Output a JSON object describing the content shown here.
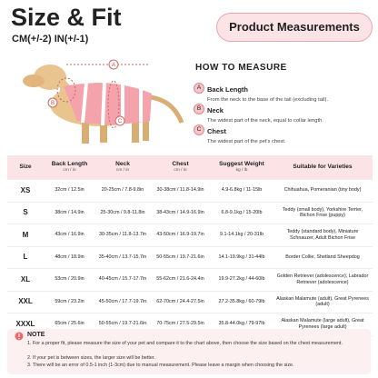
{
  "header": {
    "title": "Size & Fit",
    "subtitle": "CM(+/-2) IN(+/-1)",
    "badge": "Product Measurements"
  },
  "how_to": {
    "title": "HOW TO MEASURE",
    "items": [
      {
        "key": "A",
        "name": "Back Length",
        "desc": "From the neck to the base of the tail (excluding tail)."
      },
      {
        "key": "B",
        "name": "Neck",
        "desc": "The widest part of the neck, equal to collar length."
      },
      {
        "key": "C",
        "name": "Chest",
        "desc": "The widest part of the pet's chest."
      }
    ]
  },
  "table": {
    "headers": [
      {
        "name": "Size"
      },
      {
        "name": "Back Length",
        "unit": "cm / in"
      },
      {
        "name": "Neck",
        "unit": "cm / in"
      },
      {
        "name": "Chest",
        "unit": "cm / in"
      },
      {
        "name": "Suggest Weight",
        "unit": "kg / lb"
      },
      {
        "name": "Suitable for Varieties"
      }
    ],
    "rows": [
      [
        "XS",
        "32cm / 12.5in",
        "20-25cm / 7.8-9.8in",
        "30-38cm / 11.8-14.9in",
        "4.9-6.8kg / 11-15lb",
        "Chihuahua, Pomeranian (tiny body)"
      ],
      [
        "S",
        "38cm / 14.9in",
        "25-30cm / 9.8-11.8in",
        "38-43cm / 14.9-16.9in",
        "6.8-9.1kg / 15-20lb",
        "Teddy (small body), Yorkshire Terrier, Bichon Frise (puppy)"
      ],
      [
        "M",
        "43cm / 16.9in",
        "30-35cm / 11.8-13.7in",
        "43-50cm / 16.9-19.7in",
        "9.1-14.1kg / 20-31lb",
        "Teddy (standard body), Miniature Schnauzer, Adult Bichon Frise"
      ],
      [
        "L",
        "48cm / 18.9in",
        "35-40cm / 13.7-15.7in",
        "50-55cm / 19.7-21.6in",
        "14.1-19.9kg / 31-44lb",
        "Border Collie, Shetland Sheepdog"
      ],
      [
        "XL",
        "53cm / 20.9in",
        "40-45cm / 15.7-17.7in",
        "55-62cm / 21.6-24.4in",
        "19.9-27.2kg / 44-60lb",
        "Golden Retriever (adolescence), Labrador Retriever (adolescence)"
      ],
      [
        "XXL",
        "59cm / 23.2in",
        "45-50cm / 17.7-19.7in",
        "62-70cm / 24.4-27.5in",
        "27.2-35.8kg / 60-79lb",
        "Alaskan Malamute (adult), Great Pyrenees (adult)"
      ],
      [
        "XXXL",
        "65cm / 25.6in",
        "50-55cm / 19.7-21.6in",
        "70-75cm / 27.5-29.5in",
        "35.8-44.0kg / 79-97lb",
        "Alaskan Malamute (large adult), Great Pyrenees (large adult)"
      ]
    ]
  },
  "note": {
    "title": "NOTE",
    "lines": [
      "1. For a proper fit, please measure the size of your pet and compare it to the chart above, then choose the size based on the chest measurement.",
      "2. If your pet is between sizes, the larger size will be better.",
      "3. There will be an error of 0.5-1 inch (1-3cm) due to manual measurement. Please leave a margin when choosing the size."
    ]
  }
}
